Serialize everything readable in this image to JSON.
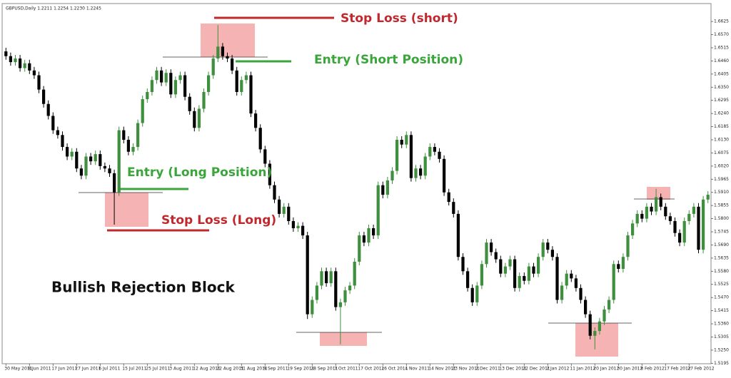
{
  "chart_data": {
    "type": "candlestick",
    "header": "GBPUSD,Daily 1.2211 1.2254 1.2230 1.2245",
    "annotations": [
      "Stop Loss (short)",
      "Entry (Short Position)",
      "Entry (Long Position)",
      "Stop Loss (Long)",
      "Bullish Rejection Block"
    ],
    "up_color": "#3f8f3f",
    "down_color": "#000000",
    "ylim": [
      1.5193,
      1.67
    ],
    "yticks": [
      1.6625,
      {
        "value": 1.657,
        "label": "1.6570"
      },
      1.6515,
      {
        "value": 1.646,
        "label": "1.6460"
      },
      1.6405,
      {
        "value": 1.635,
        "label": "1.6350"
      },
      1.6295,
      {
        "value": 1.624,
        "label": "1.6240"
      },
      1.6185,
      {
        "value": 1.613,
        "label": "1.6130"
      },
      1.6075,
      {
        "value": 1.602,
        "label": "1.6020"
      },
      1.5965,
      {
        "value": 1.591,
        "label": "1.5910"
      },
      1.5855,
      {
        "value": 1.58,
        "label": "1.5800"
      },
      1.5745,
      {
        "value": 1.569,
        "label": "1.5690"
      },
      1.5635,
      {
        "value": 1.558,
        "label": "1.5580"
      },
      1.5525,
      {
        "value": 1.547,
        "label": "1.5470"
      },
      1.5415,
      {
        "value": 1.536,
        "label": "1.5360"
      },
      1.5305,
      {
        "value": 1.525,
        "label": "1.5250"
      },
      1.5195
    ],
    "categories": [
      "30 May 2011",
      null,
      null,
      null,
      null,
      "8 Jun 2011",
      null,
      null,
      null,
      null,
      "17 Jun 2011",
      null,
      null,
      null,
      null,
      "27 Jun 2011",
      null,
      null,
      null,
      null,
      "6 Jul 2011",
      null,
      null,
      null,
      null,
      "15 Jul 2011",
      null,
      null,
      null,
      null,
      "25 Jul 2011",
      null,
      null,
      null,
      null,
      "3 Aug 2011",
      null,
      null,
      null,
      null,
      "12 Aug 2011",
      null,
      null,
      null,
      null,
      "22 Aug 2011",
      null,
      null,
      null,
      null,
      "31 Aug 2011",
      null,
      null,
      null,
      null,
      "9 Sep 2011",
      null,
      null,
      null,
      null,
      "19 Sep 2011",
      null,
      null,
      null,
      null,
      "28 Sep 2011",
      null,
      null,
      null,
      null,
      "7 Oct 2011",
      null,
      null,
      null,
      null,
      "17 Oct 2011",
      null,
      null,
      null,
      null,
      "26 Oct 2011",
      null,
      null,
      null,
      null,
      "4 Nov 2011",
      null,
      null,
      null,
      null,
      "14 Nov 2011",
      null,
      null,
      null,
      null,
      "23 Nov 2011",
      null,
      null,
      null,
      null,
      "2 Dec 2011",
      null,
      null,
      null,
      null,
      "13 Dec 2011",
      null,
      null,
      null,
      null,
      "22 Dec 2011",
      null,
      null,
      null,
      null,
      "2 Jan 2012",
      null,
      null,
      null,
      null,
      "11 Jan 2012",
      null,
      null,
      null,
      null,
      "20 Jan 2012",
      null,
      null,
      null,
      null,
      "30 Jan 2012",
      null,
      null,
      null,
      null,
      "8 Feb 2012",
      null,
      null,
      null,
      null,
      "17 Feb 2012",
      null,
      null,
      null,
      null,
      "27 Feb 2012",
      null,
      null,
      null,
      null
    ],
    "open": [
      1.65,
      1.648,
      1.6455,
      1.647,
      1.643,
      1.645,
      1.642,
      1.64,
      1.634,
      1.628,
      1.623,
      1.617,
      1.615,
      1.61,
      1.606,
      1.608,
      1.601,
      1.598,
      1.606,
      1.604,
      1.607,
      1.602,
      1.601,
      1.599,
      1.591,
      1.617,
      1.613,
      1.608,
      1.61,
      1.62,
      1.63,
      1.633,
      1.638,
      1.642,
      1.637,
      1.641,
      1.632,
      1.638,
      1.64,
      1.631,
      1.625,
      1.618,
      1.626,
      1.633,
      1.64,
      1.647,
      1.652,
      1.648,
      1.647,
      1.642,
      1.633,
      1.638,
      1.64,
      1.624,
      1.618,
      1.609,
      1.603,
      1.594,
      1.588,
      1.582,
      1.585,
      1.579,
      1.576,
      1.577,
      1.573,
      1.54,
      1.546,
      1.552,
      1.558,
      1.553,
      1.558,
      1.543,
      1.545,
      1.55,
      1.552,
      1.562,
      1.573,
      1.57,
      1.576,
      1.573,
      1.594,
      1.59,
      1.596,
      1.6,
      1.613,
      1.611,
      1.615,
      1.597,
      1.601,
      1.598,
      1.606,
      1.61,
      1.608,
      1.605,
      1.591,
      1.587,
      1.582,
      1.564,
      1.558,
      1.551,
      1.545,
      1.552,
      1.561,
      1.57,
      1.566,
      1.563,
      1.557,
      1.56,
      1.563,
      1.551,
      1.556,
      1.554,
      1.56,
      1.557,
      1.564,
      1.57,
      1.567,
      1.564,
      1.546,
      1.552,
      1.557,
      1.555,
      1.551,
      1.546,
      1.54,
      1.531,
      1.533,
      1.537,
      1.542,
      1.546,
      1.561,
      1.559,
      1.564,
      1.573,
      1.578,
      1.582,
      1.58,
      1.585,
      1.583,
      1.589,
      1.585,
      1.581,
      1.579,
      1.574,
      1.57,
      1.579,
      1.582,
      1.585,
      1.567,
      1.588
    ],
    "high": [
      1.6515,
      1.6495,
      1.6485,
      1.6485,
      1.6465,
      1.6465,
      1.6435,
      1.6415,
      1.6355,
      1.6295,
      1.6245,
      1.6185,
      1.6165,
      1.6115,
      1.6095,
      1.6095,
      1.6025,
      1.6075,
      1.6075,
      1.6085,
      1.6085,
      1.6035,
      1.6025,
      1.6005,
      1.6185,
      1.6185,
      1.6145,
      1.6115,
      1.6215,
      1.6315,
      1.6345,
      1.6395,
      1.6435,
      1.6435,
      1.6425,
      1.6425,
      1.6395,
      1.6415,
      1.6415,
      1.6325,
      1.6265,
      1.6275,
      1.6345,
      1.6415,
      1.6485,
      1.661,
      1.6535,
      1.6495,
      1.6485,
      1.6435,
      1.6395,
      1.6415,
      1.6415,
      1.6255,
      1.6195,
      1.6105,
      1.6045,
      1.5955,
      1.5895,
      1.5865,
      1.5865,
      1.5805,
      1.5785,
      1.5785,
      1.5745,
      1.5475,
      1.5535,
      1.5595,
      1.5595,
      1.5595,
      1.5595,
      1.5465,
      1.5515,
      1.5535,
      1.5635,
      1.5745,
      1.5745,
      1.5775,
      1.5775,
      1.5955,
      1.5955,
      1.5975,
      1.6015,
      1.6145,
      1.6145,
      1.6165,
      1.6165,
      1.6025,
      1.6025,
      1.6075,
      1.6115,
      1.6115,
      1.6095,
      1.6065,
      1.5925,
      1.5885,
      1.5835,
      1.5655,
      1.5595,
      1.5525,
      1.5535,
      1.5625,
      1.5715,
      1.5715,
      1.5675,
      1.5645,
      1.5615,
      1.5645,
      1.5645,
      1.5575,
      1.5575,
      1.5615,
      1.5615,
      1.5655,
      1.5715,
      1.5715,
      1.5685,
      1.5655,
      1.5535,
      1.5585,
      1.5585,
      1.5565,
      1.5525,
      1.5475,
      1.5415,
      1.5345,
      1.5385,
      1.5435,
      1.5475,
      1.5625,
      1.5625,
      1.5655,
      1.5745,
      1.5795,
      1.5835,
      1.5835,
      1.5865,
      1.5865,
      1.5925,
      1.5905,
      1.5865,
      1.5825,
      1.5805,
      1.5755,
      1.5805,
      1.5835,
      1.5865,
      1.5865,
      1.5895,
      1.5915
    ],
    "low": [
      1.6465,
      1.644,
      1.644,
      1.6415,
      1.6415,
      1.6405,
      1.6385,
      1.6325,
      1.6265,
      1.6215,
      1.6155,
      1.6135,
      1.6085,
      1.6045,
      1.6045,
      1.5995,
      1.5965,
      1.5965,
      1.6025,
      1.6025,
      1.6005,
      1.5995,
      1.5975,
      1.5775,
      1.5895,
      1.6115,
      1.6065,
      1.6065,
      1.6085,
      1.6185,
      1.6285,
      1.6315,
      1.6365,
      1.6355,
      1.6355,
      1.6305,
      1.6305,
      1.6365,
      1.6295,
      1.6235,
      1.6165,
      1.6165,
      1.6245,
      1.6315,
      1.6385,
      1.6455,
      1.6465,
      1.6455,
      1.6405,
      1.6315,
      1.6315,
      1.6365,
      1.6225,
      1.6165,
      1.6075,
      1.6015,
      1.5925,
      1.5865,
      1.5805,
      1.5805,
      1.5775,
      1.5745,
      1.5745,
      1.5715,
      1.538,
      1.5385,
      1.5445,
      1.5505,
      1.5515,
      1.5515,
      1.5415,
      1.5274,
      1.5435,
      1.5485,
      1.5505,
      1.5605,
      1.5685,
      1.5685,
      1.5715,
      1.5715,
      1.5885,
      1.5885,
      1.5945,
      1.5985,
      1.6095,
      1.6095,
      1.5955,
      1.5955,
      1.5965,
      1.5965,
      1.6045,
      1.6065,
      1.6035,
      1.5895,
      1.5855,
      1.5805,
      1.5625,
      1.5565,
      1.5495,
      1.5435,
      1.5435,
      1.5505,
      1.5595,
      1.5645,
      1.5615,
      1.5555,
      1.5555,
      1.5585,
      1.5495,
      1.5495,
      1.5525,
      1.5525,
      1.5555,
      1.5555,
      1.5625,
      1.5655,
      1.5625,
      1.5445,
      1.5445,
      1.5505,
      1.5535,
      1.5495,
      1.5445,
      1.5385,
      1.5295,
      1.5253,
      1.5315,
      1.5355,
      1.5405,
      1.5445,
      1.5575,
      1.5575,
      1.5625,
      1.5715,
      1.5765,
      1.5785,
      1.5785,
      1.5815,
      1.5815,
      1.5835,
      1.5795,
      1.5775,
      1.5725,
      1.5685,
      1.5685,
      1.5775,
      1.5805,
      1.5655,
      1.5655,
      1.5865
    ],
    "close": [
      1.648,
      1.6455,
      1.647,
      1.643,
      1.645,
      1.642,
      1.64,
      1.634,
      1.628,
      1.623,
      1.617,
      1.615,
      1.61,
      1.606,
      1.608,
      1.601,
      1.598,
      1.606,
      1.604,
      1.607,
      1.602,
      1.601,
      1.599,
      1.591,
      1.617,
      1.613,
      1.608,
      1.61,
      1.62,
      1.63,
      1.633,
      1.638,
      1.642,
      1.637,
      1.641,
      1.632,
      1.638,
      1.64,
      1.631,
      1.625,
      1.618,
      1.626,
      1.633,
      1.64,
      1.647,
      1.652,
      1.648,
      1.647,
      1.642,
      1.633,
      1.638,
      1.64,
      1.624,
      1.618,
      1.609,
      1.603,
      1.594,
      1.588,
      1.582,
      1.585,
      1.579,
      1.576,
      1.577,
      1.573,
      1.54,
      1.546,
      1.552,
      1.558,
      1.553,
      1.558,
      1.543,
      1.545,
      1.55,
      1.552,
      1.562,
      1.573,
      1.57,
      1.576,
      1.573,
      1.594,
      1.59,
      1.596,
      1.6,
      1.613,
      1.611,
      1.615,
      1.597,
      1.601,
      1.598,
      1.606,
      1.61,
      1.608,
      1.605,
      1.591,
      1.587,
      1.582,
      1.564,
      1.558,
      1.551,
      1.545,
      1.552,
      1.561,
      1.57,
      1.566,
      1.563,
      1.557,
      1.56,
      1.563,
      1.551,
      1.556,
      1.554,
      1.56,
      1.557,
      1.564,
      1.57,
      1.567,
      1.564,
      1.546,
      1.552,
      1.557,
      1.555,
      1.551,
      1.546,
      1.54,
      1.531,
      1.533,
      1.537,
      1.542,
      1.546,
      1.561,
      1.559,
      1.564,
      1.573,
      1.578,
      1.582,
      1.58,
      1.585,
      1.583,
      1.589,
      1.585,
      1.581,
      1.579,
      1.574,
      1.57,
      1.579,
      1.582,
      1.585,
      1.567,
      1.588,
      1.59
    ]
  }
}
